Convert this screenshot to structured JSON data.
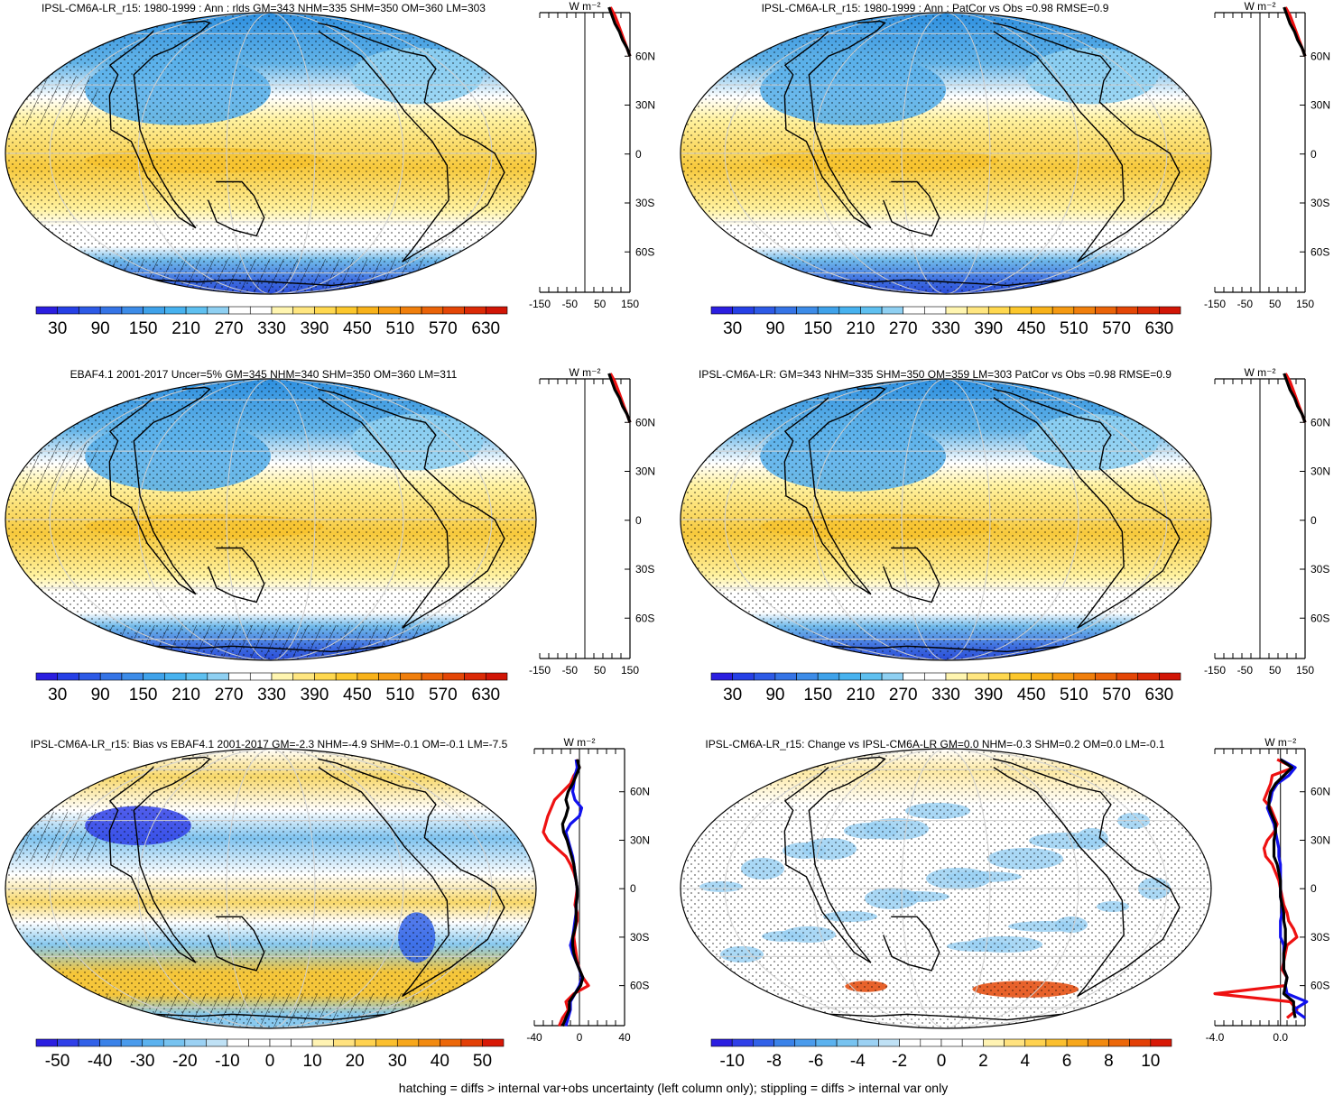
{
  "panels": [
    {
      "id": "p1",
      "title": "IPSL-CM6A-LR_r15: 1980-1999 : Ann : rlds GM=343 NHM=335 SHM=350 OM=360 LM=303",
      "colorbar_labels": [
        "30",
        "90",
        "150",
        "210",
        "270",
        "330",
        "390",
        "450",
        "510",
        "570",
        "630"
      ],
      "profile_xticks": [
        "-150",
        "-50",
        "50",
        "150"
      ],
      "profile_unit": "W m⁻²",
      "lat_labels": [
        "60N",
        "30N",
        "0",
        "30S",
        "60S"
      ]
    },
    {
      "id": "p2",
      "title": "IPSL-CM6A-LR_r15: 1980-1999 : Ann : PatCor vs Obs =0.98 RMSE=0.9",
      "colorbar_labels": [
        "30",
        "90",
        "150",
        "210",
        "270",
        "330",
        "390",
        "450",
        "510",
        "570",
        "630"
      ],
      "profile_xticks": [
        "-150",
        "-50",
        "50",
        "150"
      ],
      "profile_unit": "W m⁻²",
      "lat_labels": [
        "60N",
        "30N",
        "0",
        "30S",
        "60S"
      ]
    },
    {
      "id": "p3",
      "title": "EBAF4.1 2001-2017 Uncer=5% GM=345 NHM=340 SHM=350 OM=360 LM=311",
      "colorbar_labels": [
        "30",
        "90",
        "150",
        "210",
        "270",
        "330",
        "390",
        "450",
        "510",
        "570",
        "630"
      ],
      "profile_xticks": [
        "-150",
        "-50",
        "50",
        "150"
      ],
      "profile_unit": "W m⁻²",
      "lat_labels": [
        "60N",
        "30N",
        "0",
        "30S",
        "60S"
      ]
    },
    {
      "id": "p4",
      "title": "IPSL-CM6A-LR: GM=343 NHM=335 SHM=350 OM=359 LM=303 PatCor vs Obs =0.98 RMSE=0.9",
      "colorbar_labels": [
        "30",
        "90",
        "150",
        "210",
        "270",
        "330",
        "390",
        "450",
        "510",
        "570",
        "630"
      ],
      "profile_xticks": [
        "-150",
        "-50",
        "50",
        "150"
      ],
      "profile_unit": "W m⁻²",
      "lat_labels": [
        "60N",
        "30N",
        "0",
        "30S",
        "60S"
      ]
    },
    {
      "id": "p5",
      "title": "IPSL-CM6A-LR_r15: Bias vs EBAF4.1 2001-2017 GM=-2.3 NHM=-4.9 SHM=-0.1 OM=-0.1 LM=-7.5",
      "colorbar_labels": [
        "-50",
        "-40",
        "-30",
        "-20",
        "-10",
        "0",
        "10",
        "20",
        "30",
        "40",
        "50"
      ],
      "profile_xticks": [
        "-40",
        "0",
        "40"
      ],
      "profile_unit": "W m⁻²",
      "lat_labels": [
        "60N",
        "30N",
        "0",
        "30S",
        "60S"
      ]
    },
    {
      "id": "p6",
      "title": "IPSL-CM6A-LR_r15: Change vs IPSL-CM6A-LR GM=0.0 NHM=-0.3 SHM=0.2 OM=0.0 LM=-0.1",
      "colorbar_labels": [
        "-10",
        "-8",
        "-6",
        "-4",
        "-2",
        "0",
        "2",
        "4",
        "6",
        "8",
        "10"
      ],
      "profile_xticks": [
        "-4.0",
        "0.0"
      ],
      "profile_unit": "W m⁻²",
      "lat_labels": [
        "60N",
        "30N",
        "0",
        "30S",
        "60S"
      ]
    }
  ],
  "footer_note": "hatching = diffs > internal var+obs uncertainty (left column only); stippling = diffs > internal var only",
  "chart_data": [
    {
      "type": "heatmap",
      "title": "IPSL-CM6A-LR_r15: 1980-1999 : Ann : rlds GM=343 NHM=335 SHM=350 OM=360 LM=303",
      "colorbar": {
        "min": 0,
        "max": 660,
        "step": 30,
        "labels": [
          30,
          90,
          150,
          210,
          270,
          330,
          390,
          450,
          510,
          570,
          630
        ]
      },
      "zonal_mean_profile": {
        "xlim": [
          -150,
          150
        ],
        "series": [
          {
            "color": "red",
            "lat": [
              60,
              65,
              70,
              75,
              80,
              85,
              90
            ],
            "value": [
              150,
              140,
              130,
              120,
              110,
              100,
              85
            ]
          },
          {
            "color": "black",
            "lat": [
              60,
              65,
              70,
              75,
              80,
              85,
              90
            ],
            "value": [
              150,
              140,
              125,
              115,
              100,
              90,
              80
            ]
          }
        ]
      }
    },
    {
      "type": "heatmap",
      "title": "IPSL-CM6A-LR_r15: 1980-1999 : Ann : PatCor vs Obs =0.98 RMSE=0.9",
      "colorbar": {
        "min": 0,
        "max": 660,
        "step": 30,
        "labels": [
          30,
          90,
          150,
          210,
          270,
          330,
          390,
          450,
          510,
          570,
          630
        ]
      },
      "zonal_mean_profile": {
        "xlim": [
          -150,
          150
        ],
        "series": [
          {
            "color": "red",
            "lat": [
              60,
              65,
              70,
              75,
              80,
              85,
              90
            ],
            "value": [
              150,
              140,
              130,
              120,
              110,
              100,
              85
            ]
          },
          {
            "color": "black",
            "lat": [
              60,
              65,
              70,
              75,
              80,
              85,
              90
            ],
            "value": [
              150,
              140,
              125,
              115,
              100,
              90,
              80
            ]
          }
        ]
      }
    },
    {
      "type": "heatmap",
      "title": "EBAF4.1 2001-2017 Uncer=5% GM=345 NHM=340 SHM=350 OM=360 LM=311",
      "colorbar": {
        "min": 0,
        "max": 660,
        "step": 30,
        "labels": [
          30,
          90,
          150,
          210,
          270,
          330,
          390,
          450,
          510,
          570,
          630
        ]
      },
      "zonal_mean_profile": {
        "xlim": [
          -150,
          150
        ],
        "series": [
          {
            "color": "red",
            "lat": [
              60,
              65,
              70,
              75,
              80,
              85,
              90
            ],
            "value": [
              150,
              140,
              130,
              120,
              110,
              100,
              85
            ]
          },
          {
            "color": "black",
            "lat": [
              60,
              65,
              70,
              75,
              80,
              85,
              90
            ],
            "value": [
              150,
              140,
              125,
              115,
              100,
              90,
              80
            ]
          }
        ]
      }
    },
    {
      "type": "heatmap",
      "title": "IPSL-CM6A-LR: GM=343 NHM=335 SHM=350 OM=359 LM=303 PatCor vs Obs =0.98 RMSE=0.9",
      "colorbar": {
        "min": 0,
        "max": 660,
        "step": 30,
        "labels": [
          30,
          90,
          150,
          210,
          270,
          330,
          390,
          450,
          510,
          570,
          630
        ]
      },
      "zonal_mean_profile": {
        "xlim": [
          -150,
          150
        ],
        "series": [
          {
            "color": "red",
            "lat": [
              60,
              65,
              70,
              75,
              80,
              85,
              90
            ],
            "value": [
              150,
              140,
              130,
              120,
              110,
              100,
              85
            ]
          },
          {
            "color": "black",
            "lat": [
              60,
              65,
              70,
              75,
              80,
              85,
              90
            ],
            "value": [
              150,
              140,
              125,
              115,
              100,
              90,
              80
            ]
          }
        ]
      }
    },
    {
      "type": "heatmap",
      "title": "IPSL-CM6A-LR_r15: Bias vs EBAF4.1 2001-2017 GM=-2.3 NHM=-4.9 SHM=-0.1 OM=-0.1 LM=-7.5",
      "colorbar": {
        "min": -55,
        "max": 55,
        "step": 5,
        "labels": [
          -50,
          -40,
          -30,
          -20,
          -10,
          0,
          10,
          20,
          30,
          40,
          50
        ]
      },
      "zonal_mean_profile": {
        "xlim": [
          -40,
          40
        ],
        "series": [
          {
            "color": "red",
            "lat": [
              80,
              75,
              70,
              65,
              60,
              55,
              50,
              45,
              40,
              35,
              30,
              25,
              20,
              15,
              10,
              5,
              0,
              -5,
              -10,
              -15,
              -20,
              -25,
              -30,
              -35,
              -40,
              -45,
              -50,
              -55,
              -60,
              -65,
              -70,
              -75,
              -80,
              -85
            ],
            "value": [
              -3,
              0,
              -5,
              -8,
              -15,
              -22,
              -25,
              -28,
              -30,
              -32,
              -28,
              -20,
              -12,
              -8,
              -5,
              -3,
              -2,
              -3,
              -4,
              -2,
              -2,
              -4,
              -5,
              -4,
              -3,
              -2,
              0,
              3,
              8,
              -5,
              -12,
              -10,
              -15,
              -18
            ]
          },
          {
            "color": "blue",
            "lat": [
              80,
              75,
              70,
              65,
              60,
              55,
              50,
              45,
              40,
              35,
              30,
              25,
              20,
              15,
              10,
              5,
              0,
              -5,
              -10,
              -15,
              -20,
              -25,
              -30,
              -35,
              -40,
              -45,
              -50,
              -55,
              -60,
              -65,
              -70,
              -75,
              -80,
              -85
            ],
            "value": [
              -3,
              -2,
              -4,
              -5,
              -6,
              -4,
              2,
              0,
              -8,
              -12,
              -10,
              -8,
              -6,
              -5,
              -4,
              -3,
              -2,
              -2,
              -3,
              -3,
              -4,
              -5,
              -6,
              -8,
              -6,
              -3,
              0,
              2,
              0,
              -4,
              -8,
              -8,
              -10,
              -12
            ]
          },
          {
            "color": "black",
            "lat": [
              80,
              75,
              70,
              65,
              60,
              55,
              50,
              45,
              40,
              35,
              30,
              25,
              20,
              15,
              10,
              5,
              0,
              -5,
              -10,
              -15,
              -20,
              -25,
              -30,
              -35,
              -40,
              -45,
              -50,
              -55,
              -60,
              -65,
              -70,
              -75,
              -80,
              -85
            ],
            "value": [
              -2,
              0,
              -3,
              -6,
              -10,
              -12,
              -10,
              -12,
              -15,
              -14,
              -11,
              -9,
              -7,
              -5,
              -4,
              -3,
              -2,
              -2,
              -3,
              -3,
              -3,
              -4,
              -6,
              -6,
              -5,
              -3,
              0,
              3,
              1,
              -4,
              -9,
              -9,
              -12,
              -15
            ]
          }
        ]
      }
    },
    {
      "type": "heatmap",
      "title": "IPSL-CM6A-LR_r15: Change vs IPSL-CM6A-LR GM=0.0 NHM=-0.3 SHM=0.2 OM=0.0 LM=-0.1",
      "colorbar": {
        "min": -11,
        "max": 11,
        "step": 1,
        "labels": [
          -10,
          -8,
          -6,
          -4,
          -2,
          0,
          2,
          4,
          6,
          8,
          10
        ]
      },
      "zonal_mean_profile": {
        "xlim": [
          -4.0,
          1.5
        ],
        "series": [
          {
            "color": "red",
            "lat": [
              80,
              75,
              70,
              65,
              60,
              55,
              50,
              45,
              40,
              35,
              30,
              25,
              20,
              15,
              10,
              5,
              0,
              -5,
              -10,
              -15,
              -20,
              -25,
              -30,
              -35,
              -40,
              -45,
              -50,
              -55,
              -60,
              -65,
              -70,
              -75,
              -80
            ],
            "value": [
              -0.2,
              0.8,
              -0.5,
              -0.6,
              -0.8,
              -1.0,
              -0.6,
              -0.4,
              -0.2,
              -0.4,
              -0.8,
              -1.0,
              -0.9,
              -0.5,
              -0.3,
              -0.1,
              0.0,
              0.1,
              0.2,
              0.4,
              0.5,
              0.8,
              1.0,
              0.4,
              0.3,
              0.2,
              0.1,
              0.4,
              0.3,
              -4.0,
              0.6,
              1.0,
              0.4
            ]
          },
          {
            "color": "blue",
            "lat": [
              80,
              75,
              70,
              65,
              60,
              55,
              50,
              45,
              40,
              35,
              30,
              25,
              20,
              15,
              10,
              5,
              0,
              -5,
              -10,
              -15,
              -20,
              -25,
              -30,
              -35,
              -40,
              -45,
              -50,
              -55,
              -60,
              -65,
              -70,
              -75,
              -80
            ],
            "value": [
              0.0,
              0.9,
              0.5,
              -0.2,
              -0.5,
              -0.6,
              -0.8,
              -0.6,
              -0.4,
              -0.3,
              -0.2,
              -0.1,
              -0.1,
              0.0,
              0.0,
              0.0,
              0.0,
              0.0,
              0.1,
              0.1,
              0.0,
              0.0,
              0.0,
              0.2,
              0.2,
              0.2,
              0.2,
              0.4,
              0.3,
              0.4,
              1.6,
              0.8,
              1.5
            ]
          },
          {
            "color": "black",
            "lat": [
              80,
              75,
              70,
              65,
              60,
              55,
              50,
              45,
              40,
              35,
              30,
              25,
              20,
              15,
              10,
              5,
              0,
              -5,
              -10,
              -15,
              -20,
              -25,
              -30,
              -35,
              -40,
              -45,
              -50,
              -55,
              -60,
              -65,
              -70,
              -75,
              -80
            ],
            "value": [
              0.0,
              0.7,
              0.2,
              -0.3,
              -0.6,
              -0.7,
              -0.7,
              -0.5,
              -0.3,
              -0.3,
              -0.4,
              -0.4,
              -0.4,
              -0.2,
              -0.1,
              0.0,
              0.0,
              0.0,
              0.1,
              0.2,
              0.2,
              0.3,
              0.3,
              0.3,
              0.2,
              0.2,
              0.2,
              0.4,
              0.3,
              0.2,
              0.8,
              0.8,
              0.9
            ]
          }
        ]
      }
    }
  ]
}
